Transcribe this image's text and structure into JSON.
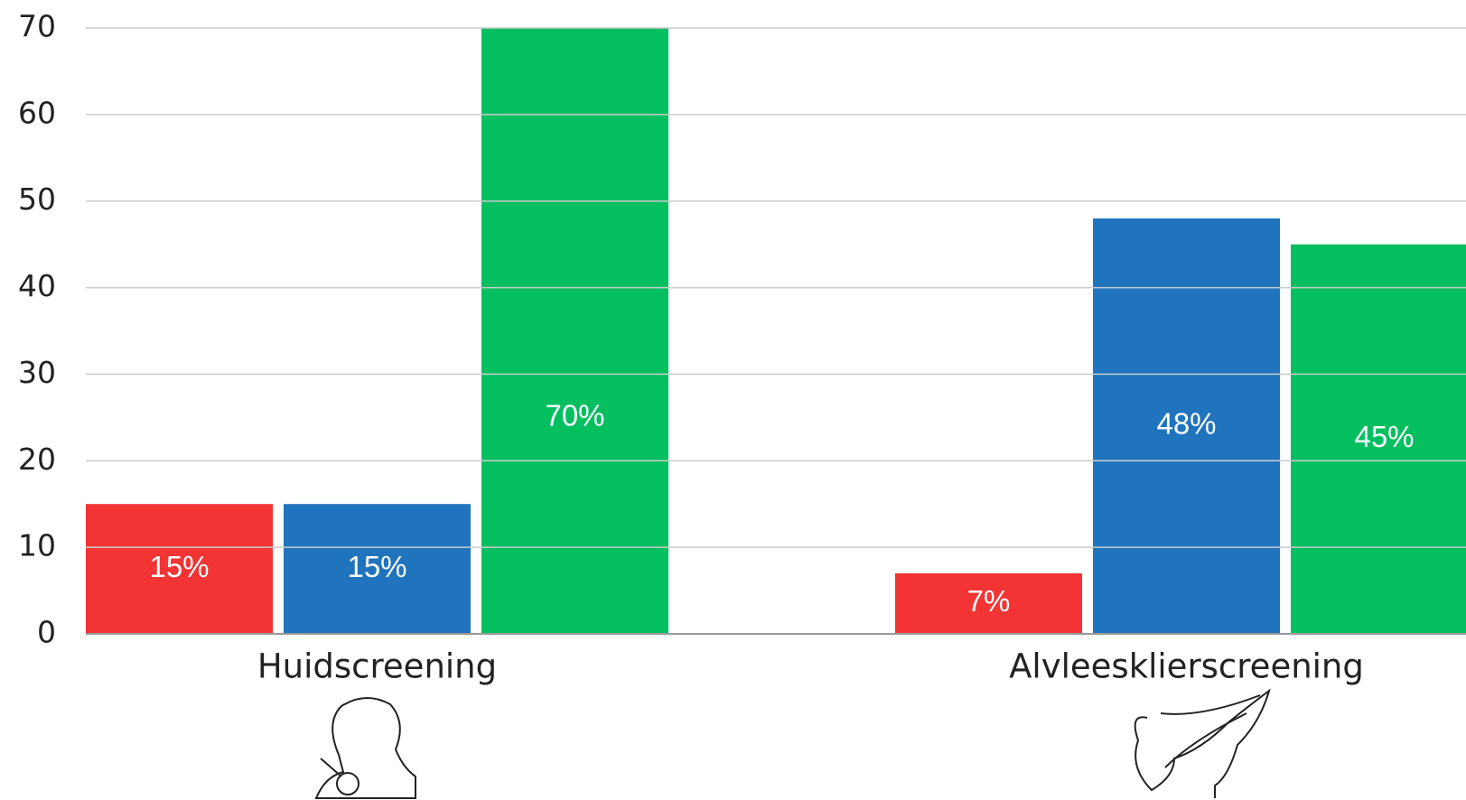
{
  "chart_data": {
    "type": "bar",
    "categories": [
      "Huidscreening",
      "Alvleesklierscreening"
    ],
    "series": [
      {
        "color": "#f23434",
        "values": [
          15,
          7
        ],
        "value_labels": [
          "15%",
          "7%"
        ]
      },
      {
        "color": "#1f74bd",
        "values": [
          15,
          48
        ],
        "value_labels": [
          "15%",
          "48%"
        ]
      },
      {
        "color": "#03bf60",
        "values": [
          70,
          45
        ],
        "value_labels": [
          "70%",
          "45%"
        ]
      }
    ],
    "ylim": [
      0,
      70
    ],
    "yticks": [
      0,
      10,
      20,
      30,
      40,
      50,
      60,
      70
    ],
    "grid": true
  }
}
